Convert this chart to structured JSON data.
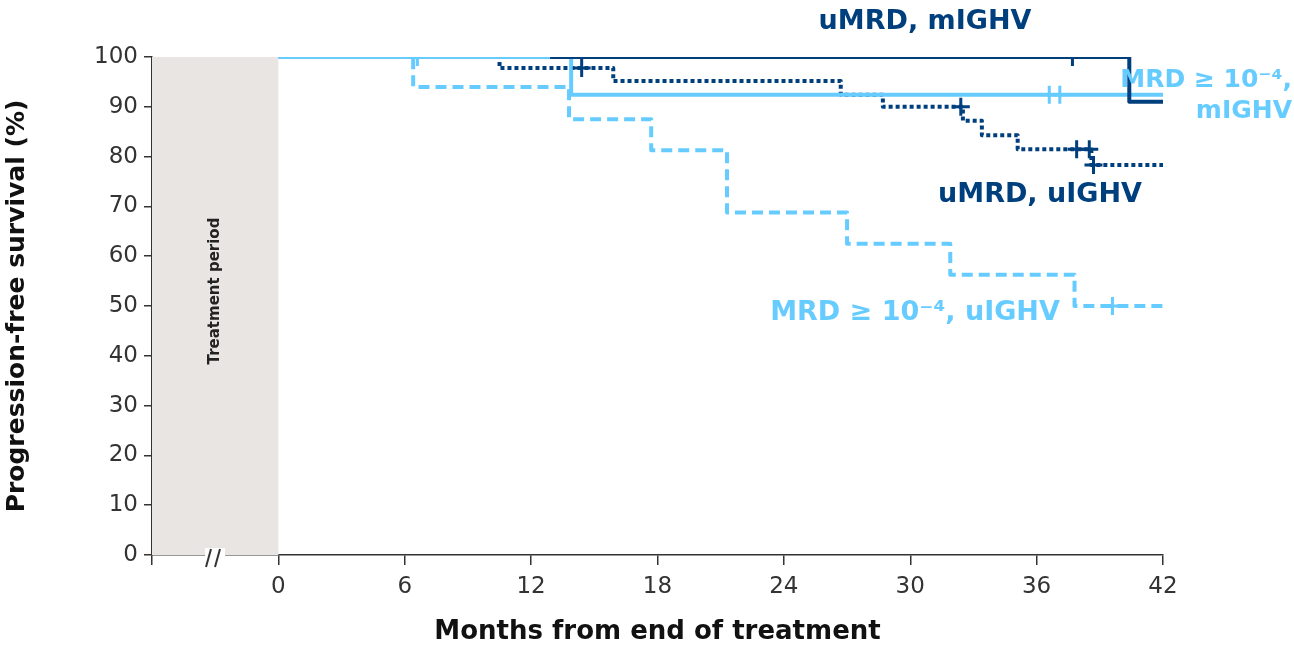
{
  "chart_data": {
    "type": "step",
    "xlabel": "Months from end of treatment",
    "ylabel": "Progression-free survival (%)",
    "xlim": [
      -6,
      42
    ],
    "xticks": [
      {
        "value": -6,
        "label": null
      },
      0,
      6,
      12,
      18,
      24,
      30,
      36,
      42
    ],
    "ylim": [
      0,
      100
    ],
    "yticks": [
      0,
      10,
      20,
      30,
      40,
      50,
      60,
      70,
      80,
      90,
      100
    ],
    "grid": false,
    "legend": false,
    "marker": "none",
    "bands": [
      {
        "axis": "x",
        "from": -6,
        "to": 0,
        "label": "Treatment period",
        "color": "#e8e5e3"
      }
    ],
    "series": [
      {
        "name": "uMRD, mIGHV",
        "color": "#003f7d",
        "line_style": "solid",
        "x": [
          12.9,
          40.4,
          42
        ],
        "values": [
          100,
          91,
          91
        ]
      },
      {
        "name": "MRD ≥ 10⁻⁴, mIGHV",
        "color": "#66ccff",
        "line_style": "solid",
        "x": [
          0,
          13.9,
          42
        ],
        "values": [
          100,
          92.4,
          92.4
        ]
      },
      {
        "name": "MRD ≥ 10⁻⁴, uIGHV",
        "color": "#66ccff",
        "line_style": "dashed",
        "x": [
          0,
          6.4,
          13.8,
          17.7,
          21.3,
          27.0,
          31.9,
          37.8,
          42
        ],
        "values": [
          100,
          94,
          87.5,
          81.3,
          68.8,
          62.5,
          56.3,
          50,
          50
        ]
      },
      {
        "name": "uMRD, uIGHV",
        "color": "#003f7d",
        "line_style": "dotted",
        "x": [
          10.4,
          10.5,
          15.9,
          26.7,
          28.7,
          32.5,
          33.4,
          35.1,
          38.6,
          42
        ],
        "values": [
          100,
          97.8,
          95.2,
          92.4,
          90,
          87.2,
          84.3,
          81.5,
          78.3,
          78.3
        ]
      },
      {
        "type": "scatter",
        "color": "#003f7d",
        "marker": "cross",
        "x": [
          14.4,
          37.7,
          32.4,
          37.9,
          38.5,
          38.7
        ],
        "values": [
          97.8,
          100,
          90,
          81.5,
          81.5,
          78.3
        ]
      },
      {
        "type": "scatter",
        "color": "#66ccff",
        "marker": "cross",
        "x": [
          6.6,
          36.6,
          37.1,
          39.6
        ],
        "values": [
          100,
          92.4,
          92.4,
          50
        ]
      }
    ]
  }
}
